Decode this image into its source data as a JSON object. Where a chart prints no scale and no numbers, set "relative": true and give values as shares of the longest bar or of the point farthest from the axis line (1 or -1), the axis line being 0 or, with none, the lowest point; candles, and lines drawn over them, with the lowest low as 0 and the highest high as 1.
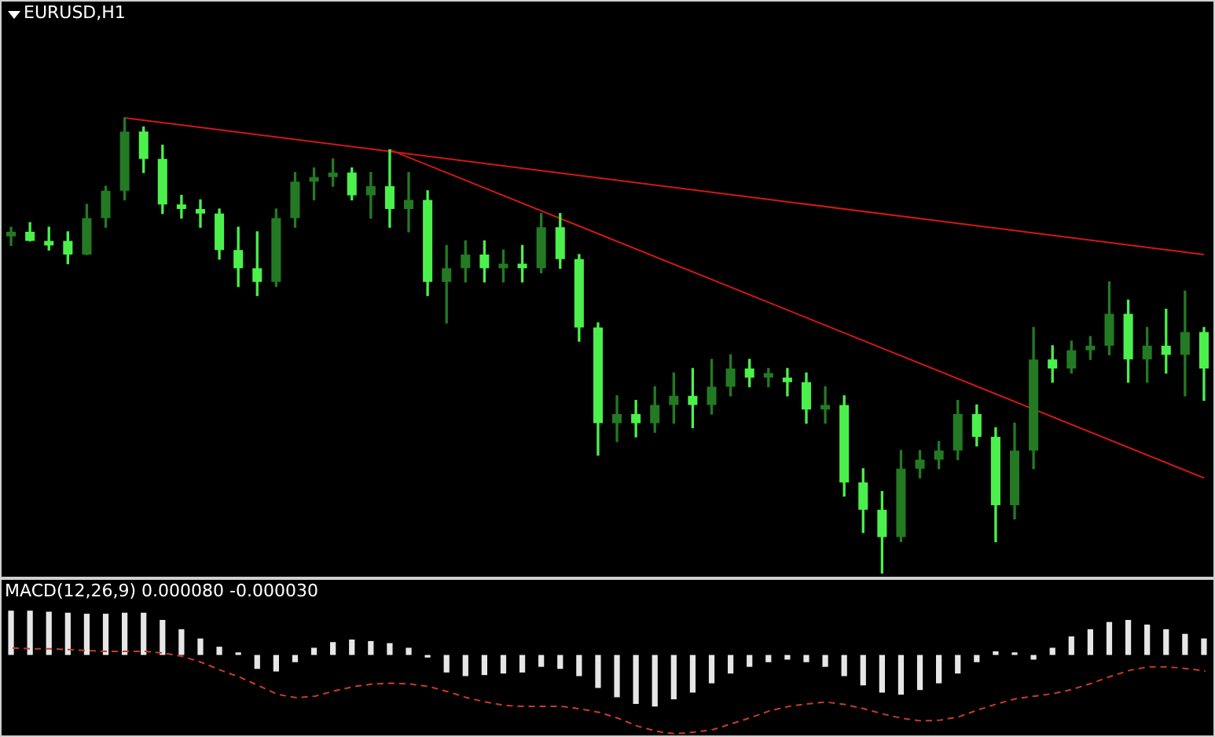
{
  "chart_data": [
    {
      "type": "candlestick",
      "title": "EURUSD,H1",
      "relative": true,
      "colors": [
        "#237a23",
        "#4cf04c",
        "#4cf04c",
        "#4cf04c",
        "#237a23",
        "#237a23",
        "#237a23",
        "#4cf04c",
        "#4cf04c",
        "#4cf04c",
        "#4cf04c",
        "#4cf04c",
        "#4cf04c",
        "#4cf04c",
        "#237a23",
        "#237a23",
        "#237a23",
        "#237a23",
        "#4cf04c",
        "#237a23",
        "#4cf04c",
        "#237a23",
        "#4cf04c",
        "#237a23",
        "#237a23",
        "#4cf04c",
        "#237a23",
        "#4cf04c",
        "#237a23",
        "#4cf04c",
        "#4cf04c",
        "#4cf04c",
        "#237a23",
        "#4cf04c",
        "#237a23",
        "#237a23",
        "#4cf04c",
        "#237a23",
        "#237a23",
        "#4cf04c",
        "#237a23",
        "#4cf04c",
        "#4cf04c",
        "#237a23",
        "#4cf04c",
        "#4cf04c",
        "#4cf04c",
        "#237a23",
        "#237a23",
        "#237a23",
        "#237a23",
        "#4cf04c",
        "#4cf04c",
        "#237a23",
        "#237a23",
        "#4cf04c",
        "#237a23",
        "#237a23",
        "#237a23",
        "#4cf04c",
        "#237a23",
        "#4cf04c",
        "#237a23",
        "#4cf04c"
      ],
      "categories": [
        null,
        null,
        null,
        null,
        null,
        null,
        null,
        null,
        null,
        null,
        null,
        null,
        null,
        null,
        null,
        null,
        null,
        null,
        null,
        null,
        null,
        null,
        null,
        null,
        null,
        null,
        null,
        null,
        null,
        null,
        null,
        null,
        null,
        null,
        null,
        null,
        null,
        null,
        null,
        null,
        null,
        null,
        null,
        null,
        null,
        null,
        null,
        null,
        null,
        null,
        null,
        null,
        null,
        null,
        null,
        null,
        null,
        null,
        null,
        null,
        null,
        null,
        null,
        null
      ],
      "ohlc": [
        [
          0.74,
          0.76,
          0.72,
          0.75
        ],
        [
          0.75,
          0.77,
          0.73,
          0.73
        ],
        [
          0.73,
          0.76,
          0.71,
          0.72
        ],
        [
          0.73,
          0.75,
          0.68,
          0.7
        ],
        [
          0.7,
          0.81,
          0.7,
          0.78
        ],
        [
          0.78,
          0.85,
          0.76,
          0.84
        ],
        [
          0.84,
          1,
          0.82,
          0.97
        ],
        [
          0.97,
          0.98,
          0.88,
          0.91
        ],
        [
          0.91,
          0.94,
          0.79,
          0.81
        ],
        [
          0.81,
          0.83,
          0.78,
          0.8
        ],
        [
          0.8,
          0.82,
          0.76,
          0.79
        ],
        [
          0.79,
          0.8,
          0.69,
          0.71
        ],
        [
          0.71,
          0.76,
          0.63,
          0.67
        ],
        [
          0.67,
          0.75,
          0.61,
          0.64
        ],
        [
          0.64,
          0.8,
          0.63,
          0.78
        ],
        [
          0.78,
          0.88,
          0.76,
          0.86
        ],
        [
          0.86,
          0.89,
          0.82,
          0.87
        ],
        [
          0.87,
          0.91,
          0.85,
          0.88
        ],
        [
          0.88,
          0.89,
          0.82,
          0.83
        ],
        [
          0.83,
          0.88,
          0.78,
          0.85
        ],
        [
          0.85,
          0.93,
          0.76,
          0.8
        ],
        [
          0.8,
          0.88,
          0.75,
          0.82
        ],
        [
          0.82,
          0.84,
          0.61,
          0.64
        ],
        [
          0.64,
          0.72,
          0.55,
          0.67
        ],
        [
          0.67,
          0.73,
          0.64,
          0.7
        ],
        [
          0.7,
          0.73,
          0.64,
          0.67
        ],
        [
          0.67,
          0.71,
          0.64,
          0.68
        ],
        [
          0.68,
          0.72,
          0.64,
          0.67
        ],
        [
          0.67,
          0.79,
          0.66,
          0.76
        ],
        [
          0.76,
          0.79,
          0.67,
          0.69
        ],
        [
          0.69,
          0.7,
          0.51,
          0.54
        ],
        [
          0.54,
          0.55,
          0.26,
          0.33
        ],
        [
          0.33,
          0.39,
          0.29,
          0.35
        ],
        [
          0.35,
          0.38,
          0.3,
          0.33
        ],
        [
          0.33,
          0.41,
          0.31,
          0.37
        ],
        [
          0.37,
          0.44,
          0.33,
          0.39
        ],
        [
          0.39,
          0.45,
          0.32,
          0.37
        ],
        [
          0.37,
          0.47,
          0.35,
          0.41
        ],
        [
          0.41,
          0.48,
          0.39,
          0.45
        ],
        [
          0.45,
          0.47,
          0.41,
          0.43
        ],
        [
          0.43,
          0.45,
          0.41,
          0.44
        ],
        [
          0.43,
          0.45,
          0.39,
          0.42
        ],
        [
          0.42,
          0.44,
          0.33,
          0.36
        ],
        [
          0.36,
          0.41,
          0.33,
          0.37
        ],
        [
          0.37,
          0.39,
          0.17,
          0.2
        ],
        [
          0.2,
          0.23,
          0.09,
          0.14
        ],
        [
          0.14,
          0.18,
          0,
          0.08
        ],
        [
          0.08,
          0.27,
          0.07,
          0.23
        ],
        [
          0.23,
          0.27,
          0.21,
          0.25
        ],
        [
          0.25,
          0.29,
          0.23,
          0.27
        ],
        [
          0.27,
          0.38,
          0.25,
          0.35
        ],
        [
          0.35,
          0.37,
          0.28,
          0.3
        ],
        [
          0.3,
          0.32,
          0.07,
          0.15
        ],
        [
          0.15,
          0.33,
          0.12,
          0.27
        ],
        [
          0.27,
          0.54,
          0.23,
          0.47
        ],
        [
          0.47,
          0.5,
          0.42,
          0.45
        ],
        [
          0.45,
          0.51,
          0.44,
          0.49
        ],
        [
          0.49,
          0.52,
          0.47,
          0.5
        ],
        [
          0.5,
          0.64,
          0.48,
          0.57
        ],
        [
          0.57,
          0.6,
          0.42,
          0.47
        ],
        [
          0.47,
          0.54,
          0.42,
          0.5
        ],
        [
          0.5,
          0.58,
          0.44,
          0.48
        ],
        [
          0.48,
          0.62,
          0.39,
          0.53
        ],
        [
          0.53,
          0.54,
          0.38,
          0.45
        ]
      ],
      "series": [
        {
          "type": "line",
          "color": "#d01818",
          "values": [
            null,
            null,
            null,
            null,
            null,
            null,
            1,
            null,
            null,
            null,
            null,
            null,
            null,
            null,
            null,
            null,
            null,
            null,
            null,
            null,
            null,
            null,
            null,
            null,
            null,
            null,
            null,
            null,
            null,
            null,
            null,
            null,
            null,
            null,
            null,
            null,
            null,
            null,
            null,
            null,
            null,
            null,
            null,
            null,
            null,
            null,
            null,
            null,
            null,
            null,
            null,
            null,
            null,
            null,
            null,
            null,
            null,
            null,
            null,
            null,
            null,
            null,
            null,
            0.7
          ]
        },
        {
          "type": "line",
          "color": "#d01818",
          "values": [
            null,
            null,
            null,
            null,
            null,
            null,
            null,
            null,
            null,
            null,
            null,
            null,
            null,
            null,
            null,
            null,
            null,
            null,
            null,
            null,
            0.93,
            null,
            null,
            null,
            null,
            null,
            null,
            null,
            null,
            null,
            null,
            null,
            null,
            null,
            null,
            null,
            null,
            null,
            null,
            null,
            null,
            null,
            null,
            null,
            null,
            null,
            null,
            null,
            null,
            null,
            null,
            null,
            null,
            null,
            null,
            null,
            null,
            null,
            null,
            null,
            null,
            null,
            null,
            0.21
          ]
        }
      ]
    },
    {
      "type": "bar",
      "title": "MACD(12,26,9) 0.000080 -0.000030",
      "relative": true,
      "categories": [
        null,
        null,
        null,
        null,
        null,
        null,
        null,
        null,
        null,
        null,
        null,
        null,
        null,
        null,
        null,
        null,
        null,
        null,
        null,
        null,
        null,
        null,
        null,
        null,
        null,
        null,
        null,
        null,
        null,
        null,
        null,
        null,
        null,
        null,
        null,
        null,
        null,
        null,
        null,
        null,
        null,
        null,
        null,
        null,
        null,
        null,
        null,
        null,
        null,
        null,
        null,
        null,
        null,
        null,
        null,
        null,
        null,
        null,
        null,
        null,
        null,
        null,
        null,
        null
      ],
      "series": [
        {
          "color": "#e6e6e6",
          "values": [
            0.86,
            0.86,
            0.84,
            0.82,
            0.8,
            0.8,
            0.82,
            0.82,
            0.68,
            0.5,
            0.32,
            0.16,
            0.05,
            -0.27,
            -0.32,
            -0.14,
            0.14,
            0.25,
            0.3,
            0.27,
            0.23,
            0.14,
            -0.05,
            -0.34,
            -0.41,
            -0.39,
            -0.36,
            -0.34,
            -0.23,
            -0.27,
            -0.41,
            -0.64,
            -0.82,
            -0.95,
            -1,
            -0.86,
            -0.73,
            -0.55,
            -0.36,
            -0.23,
            -0.14,
            -0.09,
            -0.14,
            -0.23,
            -0.41,
            -0.59,
            -0.73,
            -0.77,
            -0.68,
            -0.55,
            -0.36,
            -0.14,
            0.07,
            0.05,
            -0.09,
            0.14,
            0.36,
            0.5,
            0.64,
            0.68,
            0.59,
            0.5,
            0.41,
            0.32
          ]
        }
      ]
    },
    {
      "type": "line",
      "relative": true,
      "categories": [
        null,
        null,
        null,
        null,
        null,
        null,
        null,
        null,
        null,
        null,
        null,
        null,
        null,
        null,
        null,
        null,
        null,
        null,
        null,
        null,
        null,
        null,
        null,
        null,
        null,
        null,
        null,
        null,
        null,
        null,
        null,
        null,
        null,
        null,
        null,
        null,
        null,
        null,
        null,
        null,
        null,
        null,
        null,
        null,
        null,
        null,
        null,
        null,
        null,
        null,
        null,
        null,
        null,
        null,
        null,
        null,
        null,
        null,
        null,
        null,
        null,
        null,
        null,
        null
      ],
      "series": [
        {
          "color": "#c83c28",
          "line_style": "dashed",
          "values": [
            1,
            0.99,
            0.99,
            0.98,
            0.97,
            0.96,
            0.96,
            0.96,
            0.94,
            0.9,
            0.83,
            0.74,
            0.66,
            0.56,
            0.46,
            0.42,
            0.44,
            0.5,
            0.55,
            0.58,
            0.59,
            0.58,
            0.55,
            0.49,
            0.42,
            0.37,
            0.33,
            0.32,
            0.32,
            0.32,
            0.29,
            0.25,
            0.18,
            0.09,
            0.03,
            0,
            0.02,
            0.05,
            0.12,
            0.19,
            0.27,
            0.32,
            0.35,
            0.37,
            0.34,
            0.29,
            0.23,
            0.18,
            0.15,
            0.16,
            0.2,
            0.28,
            0.35,
            0.41,
            0.44,
            0.47,
            0.52,
            0.59,
            0.67,
            0.74,
            0.78,
            0.78,
            0.76,
            0.73
          ]
        }
      ]
    }
  ]
}
